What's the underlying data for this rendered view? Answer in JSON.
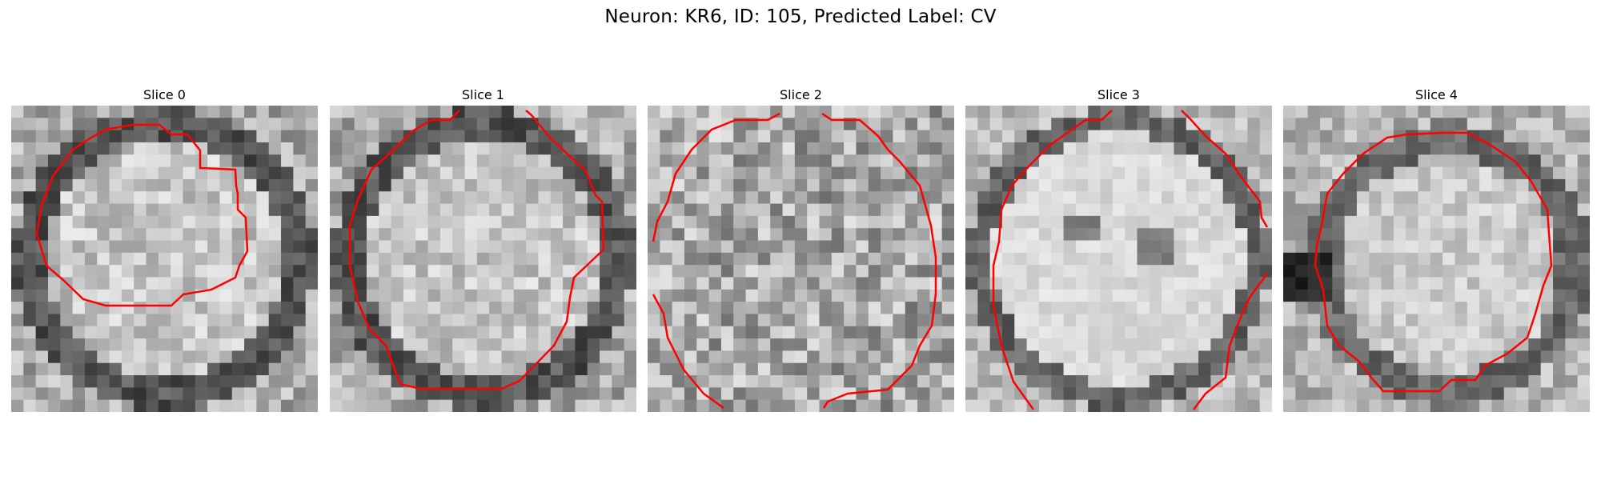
{
  "figure": {
    "title": "Neuron: KR6, ID: 105, Predicted Label: CV"
  },
  "panels": [
    {
      "title": "Slice 0",
      "label": "slice-0"
    },
    {
      "title": "Slice 1",
      "label": "slice-1"
    },
    {
      "title": "Slice 2",
      "label": "slice-2"
    },
    {
      "title": "Slice 3",
      "label": "slice-3"
    },
    {
      "title": "Slice 4",
      "label": "slice-4"
    }
  ],
  "colors": {
    "contour": "#ff0000",
    "background": "#ffffff"
  }
}
